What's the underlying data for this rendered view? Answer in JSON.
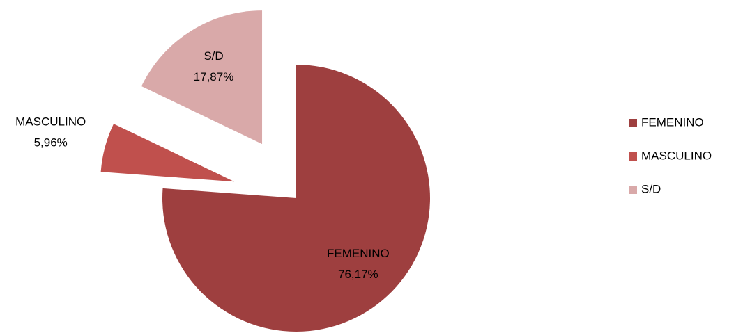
{
  "chart_data": {
    "type": "pie",
    "categories": [
      "FEMENINO",
      "MASCULINO",
      "S/D"
    ],
    "values": [
      76.17,
      5.96,
      17.87
    ],
    "value_labels": [
      "76,17%",
      "5,96%",
      "17,87%"
    ],
    "colors": [
      "#9e3f3f",
      "#c0504d",
      "#d9a9a9"
    ],
    "legend": "right"
  }
}
